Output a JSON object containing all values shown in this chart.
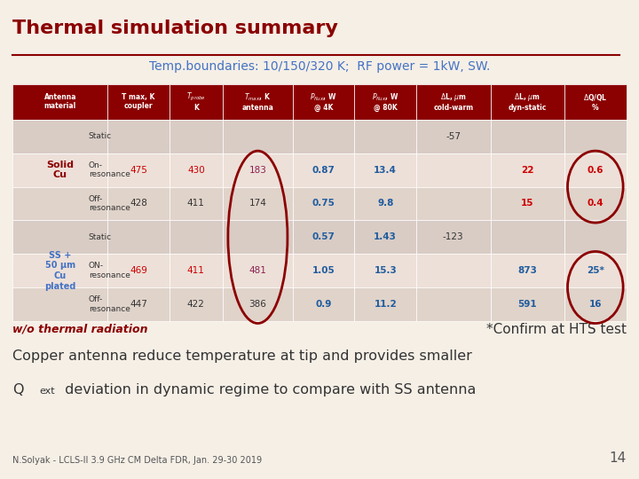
{
  "title": "Thermal simulation summary",
  "subtitle": "Temp.boundaries: 10/150/320 K;  RF power = 1kW, SW.",
  "bg_color": "#F5EFE6",
  "title_color": "#8B0000",
  "subtitle_color": "#4472C4",
  "header_bg": "#8B0000",
  "header_text_color": "#FFFFFF",
  "row_bg_light": "#E8DDD5",
  "row_bg_dark": "#D4C5BC",
  "col_headers": [
    "Antenna material",
    "T max, K\ncoupler",
    "T_probe\nK",
    "T_max, K\nantenna",
    "P_flux, W\n@ 4K",
    "P_flux, W\n@ 80K",
    "ΔL, μm\ncold-warm",
    "ΔL, μm\ndyn-static",
    "ΔQ/QL\n%"
  ],
  "rows": [
    {
      "group": "Solid\nCu",
      "label": "Static",
      "coupler": "",
      "probe": "",
      "antenna": "",
      "p4k": "",
      "p80k": "",
      "dl_cw": "-57",
      "dl_ds": "",
      "dq": ""
    },
    {
      "group": "Solid\nCu",
      "label": "On-\nresonance",
      "coupler": "475",
      "probe": "430",
      "antenna": "183",
      "p4k": "0.87",
      "p80k": "13.4",
      "dl_cw": "",
      "dl_ds": "22",
      "dq": "0.6"
    },
    {
      "group": "Solid\nCu",
      "label": "Off-\nresonance",
      "coupler": "428",
      "probe": "411",
      "antenna": "174",
      "p4k": "0.75",
      "p80k": "9.8",
      "dl_cw": "",
      "dl_ds": "15",
      "dq": "0.4"
    },
    {
      "group": "SS +\n50 μm\nCu\nplated",
      "label": "Static",
      "coupler": "",
      "probe": "",
      "antenna": "",
      "p4k": "0.57",
      "p80k": "1.43",
      "dl_cw": "-123",
      "dl_ds": "",
      "dq": ""
    },
    {
      "group": "SS +\n50 μm\nCu\nplated",
      "label": "ON-\nresonance",
      "coupler": "469",
      "probe": "411",
      "antenna": "481",
      "p4k": "1.05",
      "p80k": "15.3",
      "dl_cw": "",
      "dl_ds": "873",
      "dq": "25*"
    },
    {
      "group": "SS +\n50 μm\nCu\nplated",
      "label": "Off-\nresonance",
      "coupler": "447",
      "probe": "422",
      "antenna": "386",
      "p4k": "0.9",
      "p80k": "11.2",
      "dl_cw": "",
      "dl_ds": "591",
      "dq": "16"
    }
  ],
  "note_left": "w/o thermal radiation",
  "note_right": "*Confirm at HTS test",
  "bottom_text1": "Copper antenna reduce temperature at tip and provides smaller",
  "bottom_text2": "Q_ext deviation in dynamic regime to compare with SS antenna",
  "footer": "N.Solyak - LCLS-II 3.9 GHz CM Delta FDR, Jan. 29-30 2019",
  "page_num": "14"
}
